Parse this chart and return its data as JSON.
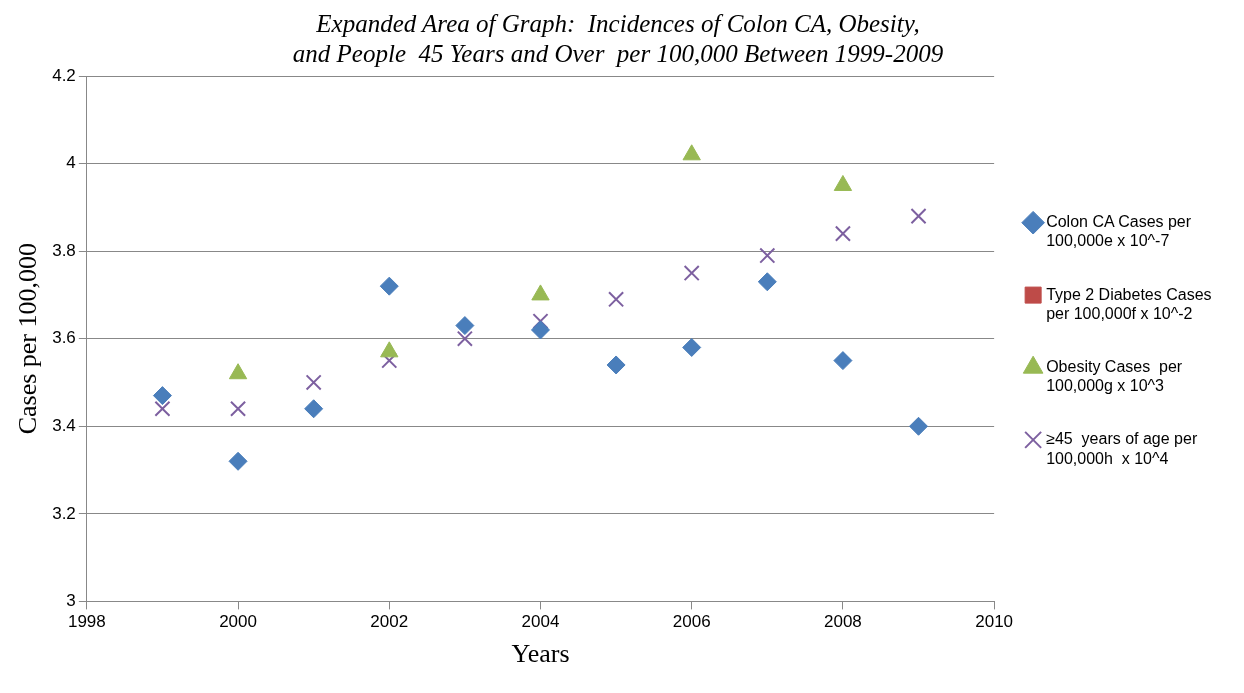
{
  "chart_data": {
    "type": "scatter",
    "title": "Expanded Area of Graph:  Incidences of Colon CA, Obesity, and People  45 Years and Over  per 100,000 Between 1999-2009",
    "xlabel": "Years",
    "ylabel": "Cases per 100,000",
    "x": [
      1999,
      2000,
      2001,
      2002,
      2003,
      2004,
      2005,
      2006,
      2007,
      2008,
      2009
    ],
    "series": [
      {
        "name": "Colon CA Cases per 100,000e x 10^-7",
        "color": "#4a7ebb",
        "marker": "diamond",
        "values": [
          3.47,
          3.32,
          3.44,
          3.72,
          3.63,
          3.62,
          3.54,
          3.58,
          3.73,
          3.55,
          3.4
        ]
      },
      {
        "name": "Type 2 Diabetes Cases  per 100,000f x 10^-2",
        "color": "#be4b48",
        "marker": "square",
        "values": [
          null,
          null,
          null,
          null,
          null,
          null,
          null,
          null,
          null,
          null,
          null
        ]
      },
      {
        "name": "Obesity Cases  per 100,000g x 10^3",
        "color": "#98b954",
        "marker": "triangle",
        "values": [
          null,
          3.52,
          null,
          3.57,
          null,
          3.7,
          null,
          4.02,
          null,
          3.95,
          null
        ]
      },
      {
        "name": "≥45  years of age per 100,000h  x 10^4",
        "color": "#7d60a0",
        "marker": "cross",
        "values": [
          3.44,
          3.44,
          3.5,
          3.55,
          3.6,
          3.64,
          3.69,
          3.75,
          3.79,
          3.84,
          3.88
        ]
      }
    ],
    "xlim": [
      1998,
      2010
    ],
    "xticks": [
      1998,
      2000,
      2002,
      2004,
      2006,
      2008,
      2010
    ],
    "ylim": [
      3,
      4.2
    ],
    "yticks": [
      3,
      3.2,
      3.4,
      3.6,
      3.8,
      4,
      4.2
    ],
    "grid": "y",
    "legend": "right"
  }
}
